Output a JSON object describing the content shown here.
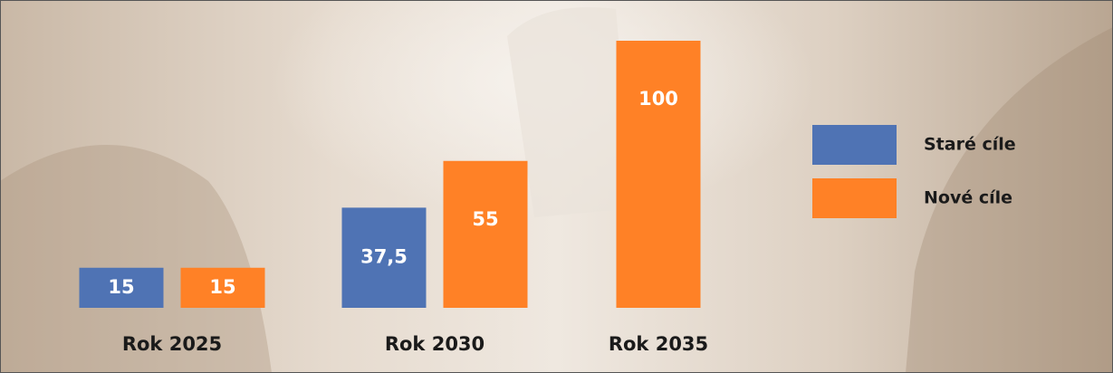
{
  "chart_data": {
    "type": "bar",
    "categories": [
      "Rok 2025",
      "Rok 2030",
      "Rok 2035"
    ],
    "series": [
      {
        "name": "Staré cíle",
        "color": "#4f73b4",
        "values": [
          15,
          37.5,
          null
        ],
        "value_labels": [
          "15",
          "37,5",
          null
        ]
      },
      {
        "name": "Nové cíle",
        "color": "#ff8126",
        "values": [
          15,
          55,
          100
        ]
      }
    ],
    "ylim": [
      0,
      100
    ]
  }
}
